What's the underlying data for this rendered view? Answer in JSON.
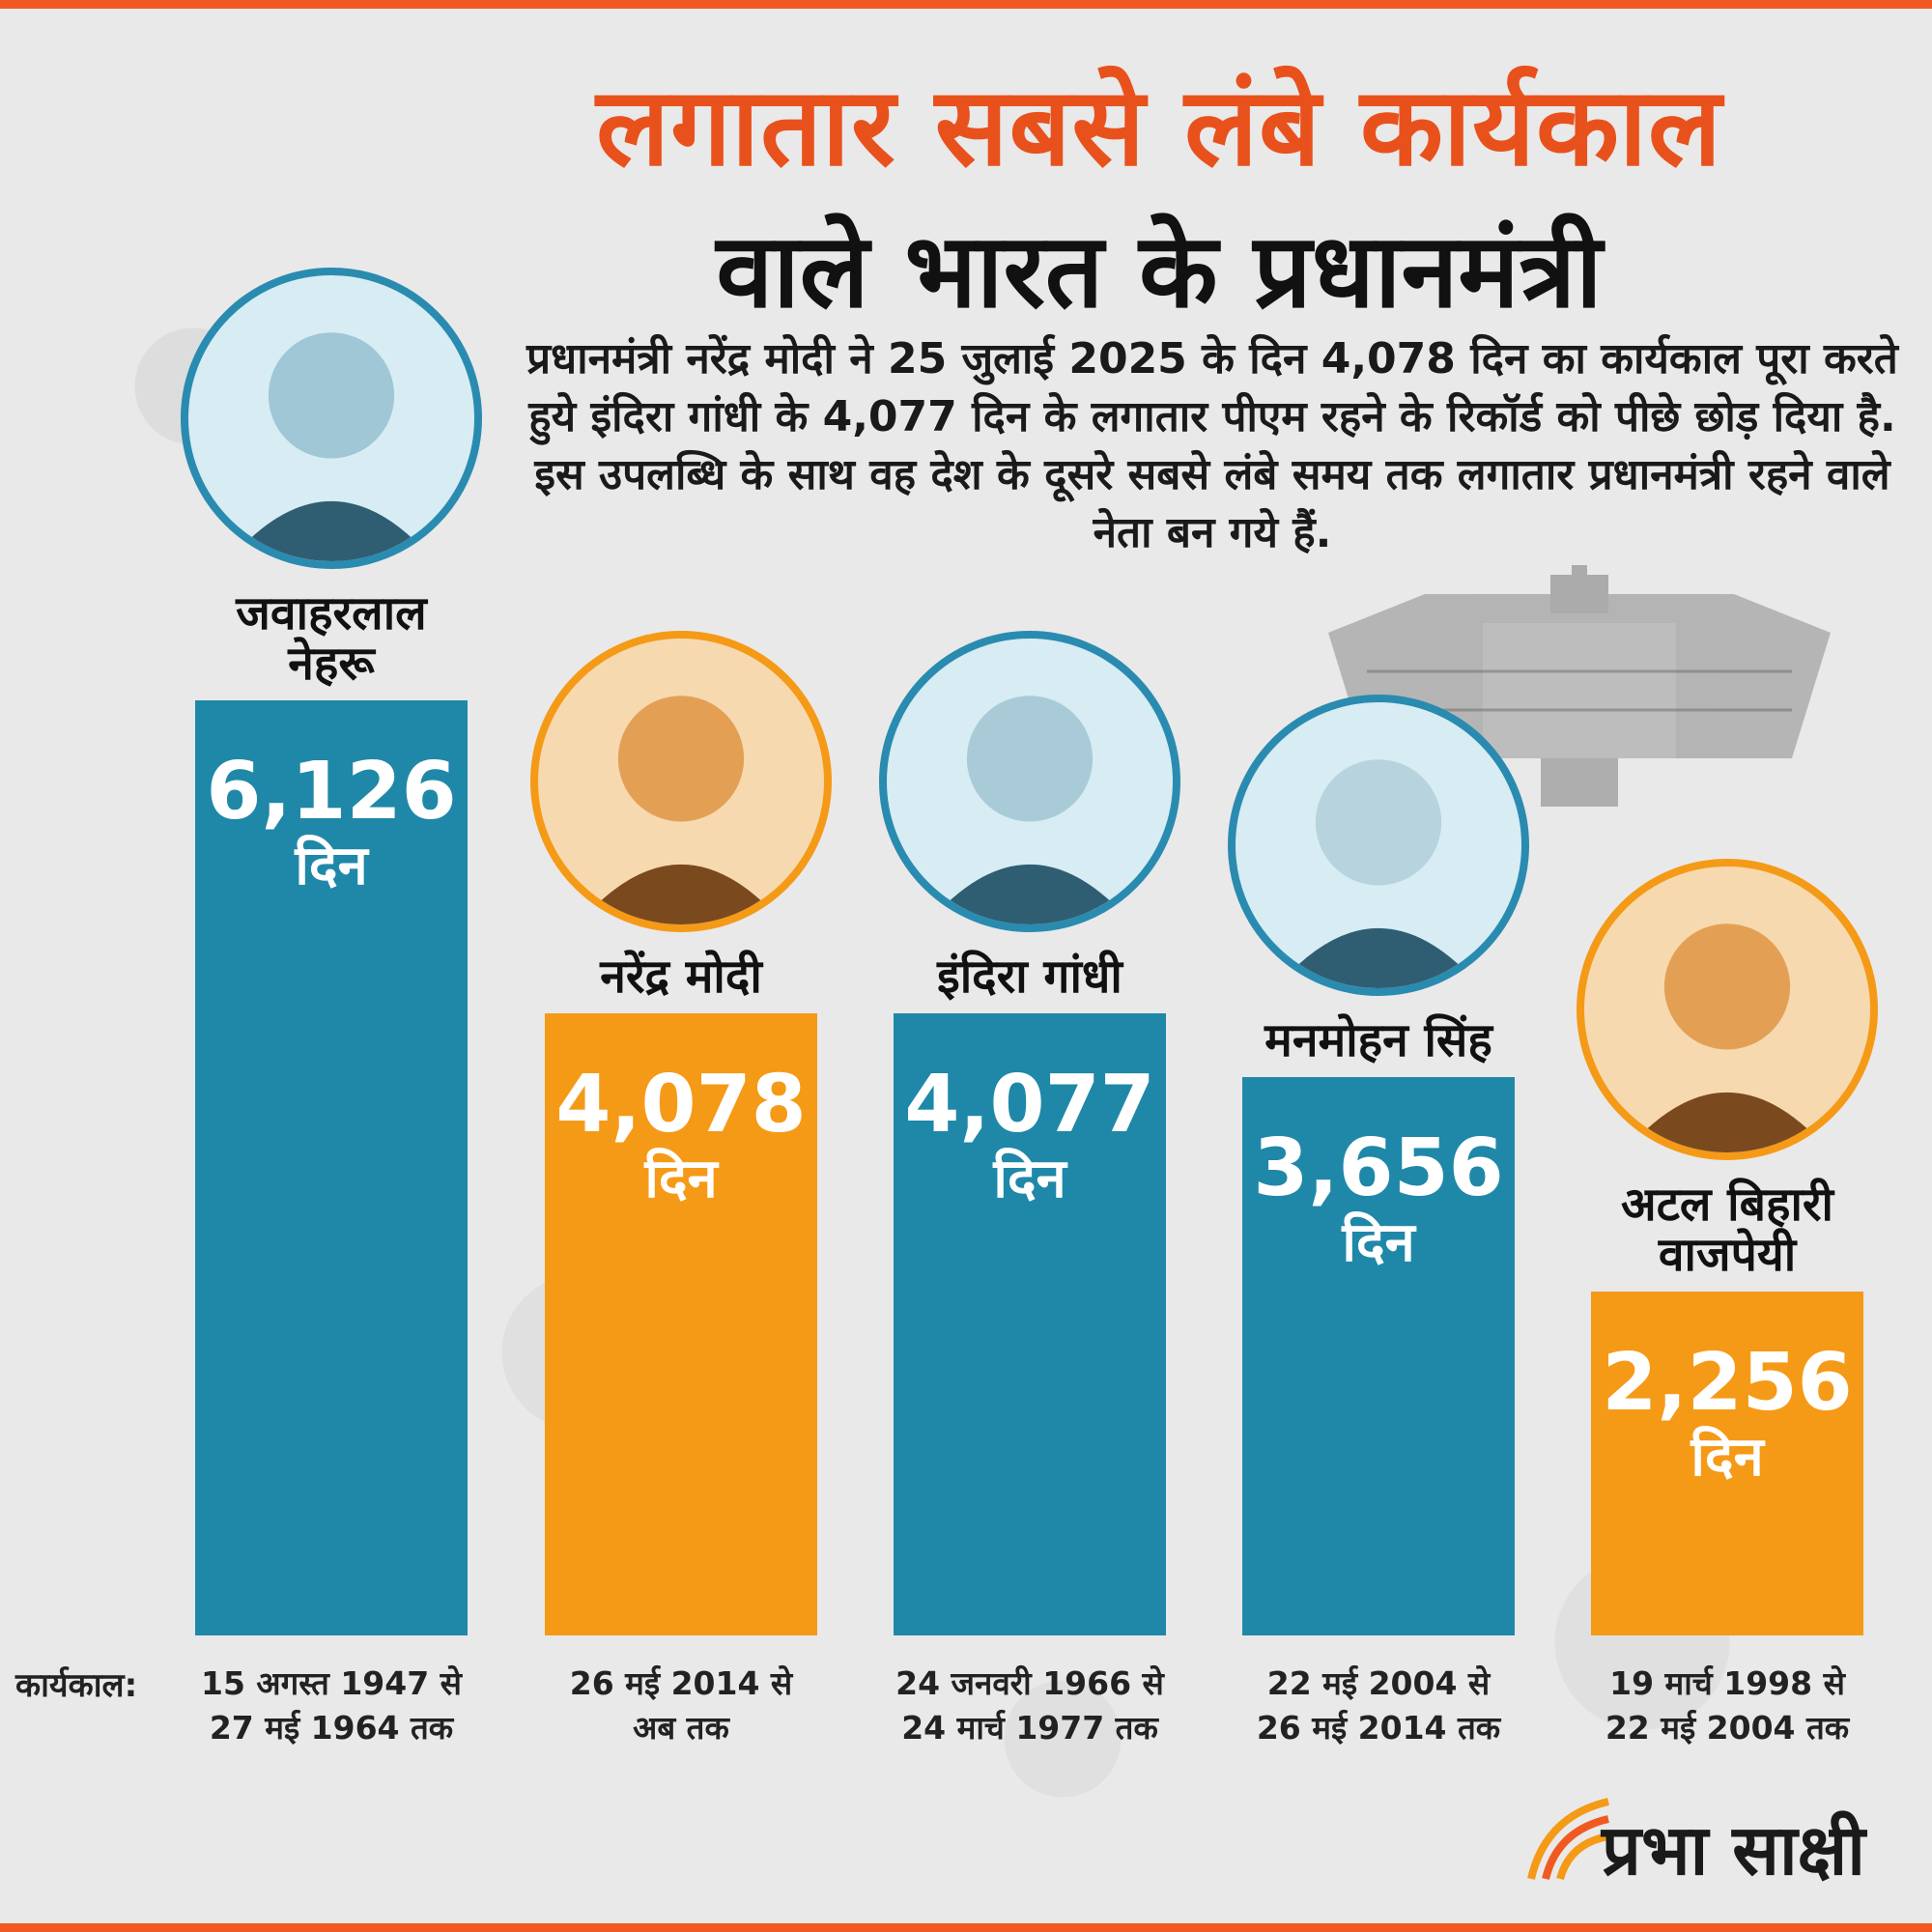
{
  "title_line1": "लगातार सबसे लंबे कार्यकाल",
  "title_line2": "वाले भारत के प्रधानमंत्री",
  "description": "प्रधानमंत्री नरेंद्र मोदी ने 25 जुलाई 2025 के दिन 4,078 दिन का कार्यकाल पूरा करते हुये इंदिरा गांधी के 4,077 दिन के लगातार पीएम रहने के रिकॉर्ड को पीछे छोड़ दिया है. इस उपलब्धि के साथ वह देश के दूसरे सबसे लंबे समय तक लगातार प्रधानमंत्री रहने वाले नेता बन गये हैं.",
  "term_label": "कार्यकाल:",
  "unit_label": "दिन",
  "brand": "प्रभा साक्षी",
  "colors": {
    "accent_orange": "#f05a22",
    "bar_blue": "#1f88a8",
    "bar_orange": "#f59a17",
    "portrait_ring_blue": "#2a8bb0",
    "portrait_ring_orange": "#f59a17"
  },
  "chart_data": {
    "type": "bar",
    "title": "लगातार सबसे लंबे कार्यकाल वाले भारत के प्रधानमंत्री",
    "categories": [
      "जवाहरलाल नेहरू",
      "नरेंद्र मोदी",
      "इंदिरा गांधी",
      "मनमोहन सिंह",
      "अटल बिहारी वाजपेयी"
    ],
    "series": [
      {
        "values": [
          6126,
          4078,
          4077,
          3656,
          2256
        ]
      }
    ],
    "value_labels": [
      "6,126",
      "4,078",
      "4,077",
      "3,656",
      "2,256"
    ],
    "bar_colors": [
      "#1f88a8",
      "#f59a17",
      "#1f88a8",
      "#1f88a8",
      "#f59a17"
    ],
    "name_lines": [
      [
        "जवाहरलाल",
        "नेहरू"
      ],
      [
        "नरेंद्र मोदी"
      ],
      [
        "इंदिरा गांधी"
      ],
      [
        "मनमोहन सिंह"
      ],
      [
        "अटल बिहारी",
        "वाजपेयी"
      ]
    ],
    "terms": [
      [
        "15 अगस्त 1947 से",
        "27 मई 1964 तक"
      ],
      [
        "26 मई 2014 से",
        "अब तक"
      ],
      [
        "24 जनवरी 1966 से",
        "24 मार्च 1977 तक"
      ],
      [
        "22 मई 2004 से",
        "26 मई 2014 तक"
      ],
      [
        "19 मार्च 1998 से",
        "22 मई 2004 तक"
      ]
    ],
    "xlabel": "",
    "ylabel": "",
    "grid": false
  }
}
